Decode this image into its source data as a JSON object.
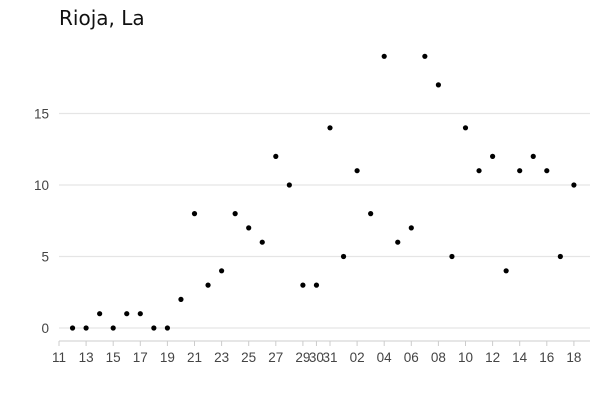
{
  "chart_data": {
    "type": "scatter",
    "title": "Rioja, La",
    "xlabel": "",
    "ylabel": "",
    "ylim": [
      0,
      20
    ],
    "yticks": [
      0,
      5,
      10,
      15
    ],
    "xtick_labels": [
      "11",
      "13",
      "15",
      "17",
      "19",
      "21",
      "23",
      "25",
      "27",
      "29",
      "30",
      "31",
      "02",
      "04",
      "06",
      "08",
      "10",
      "12",
      "14",
      "16",
      "18"
    ],
    "x": [
      "11 Mar",
      "12 Mar",
      "13 Mar",
      "14 Mar",
      "15 Mar",
      "16 Mar",
      "17 Mar",
      "18 Mar",
      "19 Mar",
      "20 Mar",
      "21 Mar",
      "22 Mar",
      "23 Mar",
      "24 Mar",
      "25 Mar",
      "26 Mar",
      "27 Mar",
      "28 Mar",
      "29 Mar",
      "30 Mar",
      "31 Mar",
      "01 Apr",
      "02 Apr",
      "03 Apr",
      "04 Apr",
      "05 Apr",
      "06 Apr",
      "07 Apr",
      "08 Apr",
      "09 Apr",
      "10 Apr",
      "11 Apr",
      "12 Apr",
      "13 Apr",
      "14 Apr",
      "15 Apr",
      "16 Apr",
      "17 Apr",
      "18 Apr"
    ],
    "series": [
      {
        "values": [
          null,
          0,
          0,
          1,
          0,
          1,
          1,
          0,
          0,
          2,
          8,
          3,
          4,
          8,
          7,
          6,
          12,
          10,
          3,
          3,
          14,
          5,
          11,
          8,
          19,
          6,
          7,
          19,
          17,
          5,
          14,
          11,
          12,
          4,
          11,
          12,
          11,
          5,
          10
        ]
      }
    ],
    "grid": "horizontal",
    "point_color": "#000000",
    "grid_color": "#e5e5e5",
    "axis_color": "#cccccc"
  }
}
